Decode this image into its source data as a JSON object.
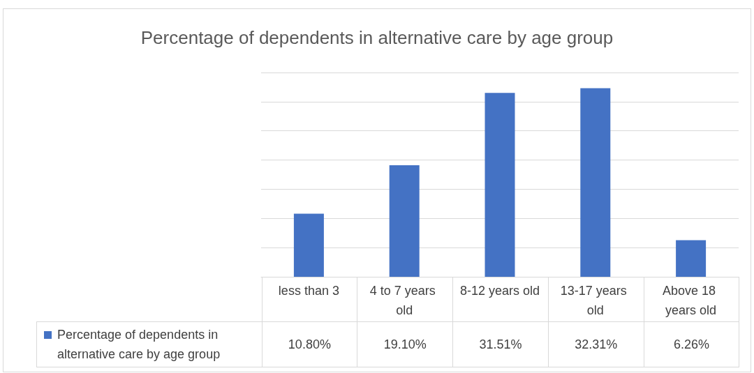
{
  "chart_data": {
    "type": "bar",
    "title": "Percentage of dependents in alternative care by age group",
    "categories": [
      "less than 3",
      "4 to 7 years old",
      "8-12 years old",
      "13-17 years old",
      "Above 18 years old"
    ],
    "series": [
      {
        "name": "Percentage of dependents in alternative care by age group",
        "color": "#4472c4",
        "values": [
          10.8,
          19.1,
          31.51,
          32.31,
          6.26
        ],
        "value_labels": [
          "10.80%",
          "19.10%",
          "31.51%",
          "32.31%",
          "6.26%"
        ]
      }
    ],
    "ylim": [
      0,
      35
    ],
    "yticks": [
      {
        "value": 0,
        "label": null
      },
      {
        "value": 5,
        "label": null
      },
      {
        "value": 10,
        "label": null
      },
      {
        "value": 15,
        "label": null
      },
      {
        "value": 20,
        "label": null
      },
      {
        "value": 25,
        "label": null
      },
      {
        "value": 30,
        "label": null
      },
      {
        "value": 35,
        "label": null
      }
    ],
    "grid": true,
    "legend": "bottom left"
  }
}
